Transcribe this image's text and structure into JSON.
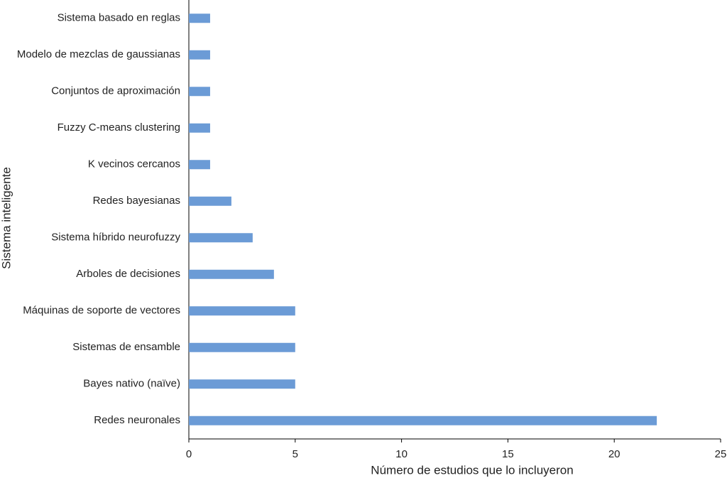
{
  "chart_data": {
    "type": "bar",
    "orientation": "horizontal",
    "x_label": "Número de estudios que lo incluyeron",
    "y_label": "Sistema inteligente",
    "categories": [
      "Sistema basado en reglas",
      "Modelo de mezclas de gaussianas",
      "Conjuntos de aproximación",
      "Fuzzy C-means clustering",
      "K vecinos cercanos",
      "Redes bayesianas",
      "Sistema híbrido neurofuzzy",
      "Arboles de decisiones",
      "Máquinas de soporte de vectores",
      "Sistemas de ensamble",
      "Bayes nativo (naïve)",
      "Redes neuronales"
    ],
    "values": [
      1,
      1,
      1,
      1,
      1,
      2,
      3,
      4,
      5,
      5,
      5,
      22
    ],
    "color": "#6b9bd6",
    "xlim": [
      0,
      25
    ],
    "xticks": [
      0,
      5,
      10,
      15,
      20,
      25
    ],
    "grid": false
  }
}
